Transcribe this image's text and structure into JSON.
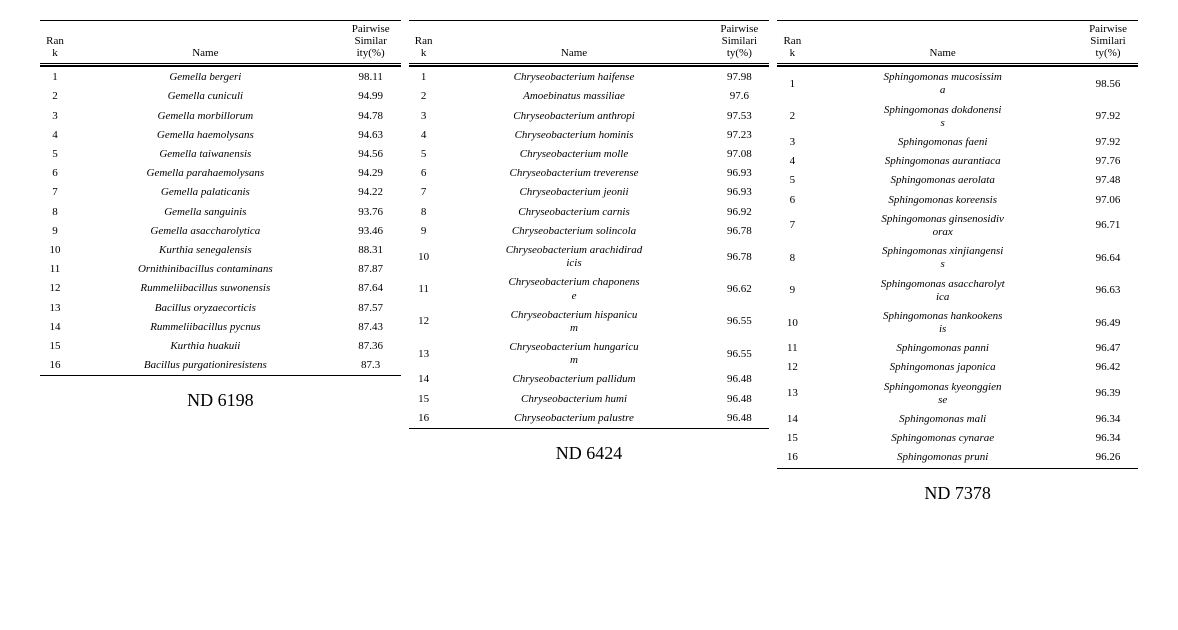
{
  "headers": {
    "rank": "Ran\nk",
    "name": "Name",
    "sim_a": "Pairwise Similar\nity(%)",
    "sim_b": "Pairwise Similari\nty(%)"
  },
  "tables": [
    {
      "caption": "ND 6198",
      "sim_header_key": "sim_a",
      "rows": [
        {
          "rank": "1",
          "name": "Gemella bergeri",
          "sim": "98.11"
        },
        {
          "rank": "2",
          "name": "Gemella cuniculi",
          "sim": "94.99"
        },
        {
          "rank": "3",
          "name": "Gemella morbillorum",
          "sim": "94.78"
        },
        {
          "rank": "4",
          "name": "Gemella haemolysans",
          "sim": "94.63"
        },
        {
          "rank": "5",
          "name": "Gemella taiwanensis",
          "sim": "94.56"
        },
        {
          "rank": "6",
          "name": "Gemella parahaemolysans",
          "sim": "94.29"
        },
        {
          "rank": "7",
          "name": "Gemella palaticanis",
          "sim": "94.22"
        },
        {
          "rank": "8",
          "name": "Gemella sanguinis",
          "sim": "93.76"
        },
        {
          "rank": "9",
          "name": "Gemella asaccharolytica",
          "sim": "93.46"
        },
        {
          "rank": "10",
          "name": "Kurthia senegalensis",
          "sim": "88.31"
        },
        {
          "rank": "11",
          "name": "Ornithinibacillus contaminans",
          "sim": "87.87"
        },
        {
          "rank": "12",
          "name": "Rummeliibacillus suwonensis",
          "sim": "87.64"
        },
        {
          "rank": "13",
          "name": "Bacillus oryzaecorticis",
          "sim": "87.57"
        },
        {
          "rank": "14",
          "name": "Rummeliibacillus pycnus",
          "sim": "87.43"
        },
        {
          "rank": "15",
          "name": "Kurthia huakuii",
          "sim": "87.36"
        },
        {
          "rank": "16",
          "name": "Bacillus purgationiresistens",
          "sim": "87.3"
        }
      ]
    },
    {
      "caption": "ND 6424",
      "sim_header_key": "sim_b",
      "rows": [
        {
          "rank": "1",
          "name": "Chryseobacterium haifense",
          "sim": "97.98"
        },
        {
          "rank": "2",
          "name": "Amoebinatus massiliae",
          "sim": "97.6"
        },
        {
          "rank": "3",
          "name": "Chryseobacterium anthropi",
          "sim": "97.53"
        },
        {
          "rank": "4",
          "name": "Chryseobacterium hominis",
          "sim": "97.23"
        },
        {
          "rank": "5",
          "name": "Chryseobacterium molle",
          "sim": "97.08"
        },
        {
          "rank": "6",
          "name": "Chryseobacterium treverense",
          "sim": "96.93"
        },
        {
          "rank": "7",
          "name": "Chryseobacterium jeonii",
          "sim": "96.93"
        },
        {
          "rank": "8",
          "name": "Chryseobacterium carnis",
          "sim": "96.92"
        },
        {
          "rank": "9",
          "name": "Chryseobacterium solincola",
          "sim": "96.78"
        },
        {
          "rank": "10",
          "name": "Chryseobacterium arachidirad\nicis",
          "sim": "96.78"
        },
        {
          "rank": "11",
          "name": "Chryseobacterium chaponens\ne",
          "sim": "96.62"
        },
        {
          "rank": "12",
          "name": "Chryseobacterium hispanicu\nm",
          "sim": "96.55"
        },
        {
          "rank": "13",
          "name": "Chryseobacterium hungaricu\nm",
          "sim": "96.55"
        },
        {
          "rank": "14",
          "name": "Chryseobacterium pallidum",
          "sim": "96.48"
        },
        {
          "rank": "15",
          "name": "Chryseobacterium humi",
          "sim": "96.48"
        },
        {
          "rank": "16",
          "name": "Chryseobacterium palustre",
          "sim": "96.48"
        }
      ]
    },
    {
      "caption": "ND 7378",
      "sim_header_key": "sim_b",
      "rows": [
        {
          "rank": "1",
          "name": "Sphingomonas mucosissim\na",
          "sim": "98.56"
        },
        {
          "rank": "2",
          "name": "Sphingomonas dokdonensi\ns",
          "sim": "97.92"
        },
        {
          "rank": "3",
          "name": "Sphingomonas faeni",
          "sim": "97.92"
        },
        {
          "rank": "4",
          "name": "Sphingomonas aurantiaca",
          "sim": "97.76"
        },
        {
          "rank": "5",
          "name": "Sphingomonas aerolata",
          "sim": "97.48"
        },
        {
          "rank": "6",
          "name": "Sphingomonas koreensis",
          "sim": "97.06"
        },
        {
          "rank": "7",
          "name": "Sphingomonas ginsenosidiv\norax",
          "sim": "96.71"
        },
        {
          "rank": "8",
          "name": "Sphingomonas xinjiangensi\ns",
          "sim": "96.64"
        },
        {
          "rank": "9",
          "name": "Sphingomonas asaccharolyt\nica",
          "sim": "96.63"
        },
        {
          "rank": "10",
          "name": "Sphingomonas hankookens\nis",
          "sim": "96.49"
        },
        {
          "rank": "11",
          "name": "Sphingomonas panni",
          "sim": "96.47"
        },
        {
          "rank": "12",
          "name": "Sphingomonas japonica",
          "sim": "96.42"
        },
        {
          "rank": "13",
          "name": "Sphingomonas kyeonggien\nse",
          "sim": "96.39"
        },
        {
          "rank": "14",
          "name": "Sphingomonas mali",
          "sim": "96.34"
        },
        {
          "rank": "15",
          "name": "Sphingomonas cynarae",
          "sim": "96.34"
        },
        {
          "rank": "16",
          "name": "Sphingomonas pruni",
          "sim": "96.26"
        }
      ]
    }
  ]
}
